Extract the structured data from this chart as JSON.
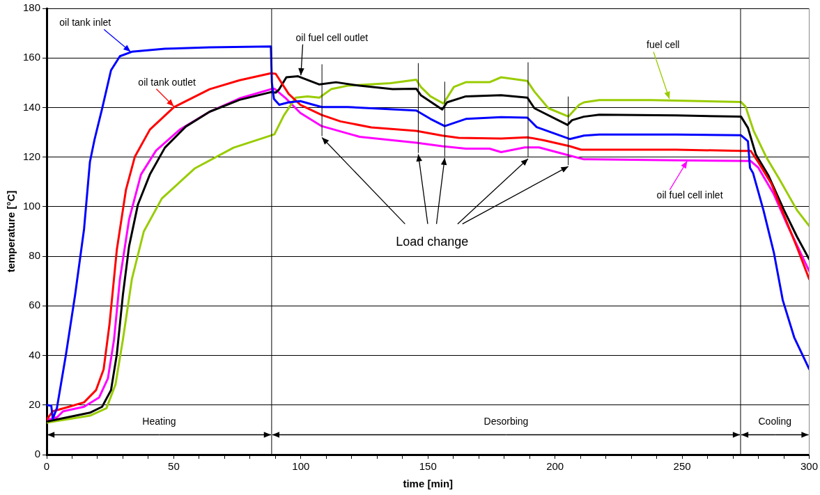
{
  "chart_data": {
    "type": "line",
    "xlabel": "time [min]",
    "ylabel": "temperature [°C]",
    "xlim": [
      0,
      300
    ],
    "ylim": [
      0,
      180
    ],
    "xticks": [
      0,
      {
        "value": 10,
        "label": null
      },
      {
        "value": 20,
        "label": null
      },
      {
        "value": 30,
        "label": null
      },
      {
        "value": 40,
        "label": null
      },
      50,
      {
        "value": 60,
        "label": null
      },
      {
        "value": 70,
        "label": null
      },
      {
        "value": 80,
        "label": null
      },
      {
        "value": 90,
        "label": null
      },
      100,
      {
        "value": 110,
        "label": null
      },
      {
        "value": 120,
        "label": null
      },
      {
        "value": 130,
        "label": null
      },
      {
        "value": 140,
        "label": null
      },
      150,
      {
        "value": 160,
        "label": null
      },
      {
        "value": 170,
        "label": null
      },
      {
        "value": 180,
        "label": null
      },
      {
        "value": 190,
        "label": null
      },
      200,
      {
        "value": 210,
        "label": null
      },
      {
        "value": 220,
        "label": null
      },
      {
        "value": 230,
        "label": null
      },
      {
        "value": 240,
        "label": null
      },
      250,
      {
        "value": 260,
        "label": null
      },
      {
        "value": 270,
        "label": null
      },
      {
        "value": 280,
        "label": null
      },
      {
        "value": 290,
        "label": null
      },
      300
    ],
    "yticks": [
      0,
      20,
      40,
      60,
      80,
      100,
      120,
      140,
      160,
      180
    ],
    "grid": "y",
    "legend": false,
    "series": [
      {
        "name": "oil tank inlet",
        "color": "#0000ff",
        "x": [
          0,
          1.8,
          2.4,
          4,
          7.6,
          11.2,
          14.7,
          17,
          18.8,
          21.8,
          25.3,
          28.8,
          33.5,
          46.5,
          64,
          88.2,
          88.6,
          89.4,
          91.5,
          95.2,
          99.8,
          108.2,
          118.4,
          145.4,
          151,
          156.6,
          164.9,
          178.8,
          189.1,
          192.8,
          205.8,
          211.4,
          217.4,
          247.7,
          273.2,
          275.9,
          276.7,
          277.9,
          282,
          286.1,
          289.6,
          294.1,
          300
        ],
        "values": [
          20,
          19.7,
          14.5,
          18.7,
          40.5,
          64.6,
          91,
          118,
          127,
          139.5,
          155,
          160.7,
          162.5,
          163.7,
          164.3,
          164.6,
          150,
          143.5,
          141.1,
          142.1,
          142.6,
          140.2,
          140.2,
          138.8,
          135.4,
          132.5,
          135.4,
          136.1,
          135.9,
          132.1,
          127.3,
          128.7,
          129.1,
          129.1,
          128.8,
          126.4,
          115.7,
          113.6,
          98.6,
          81.5,
          62.3,
          47.3,
          34.5
        ]
      },
      {
        "name": "oil tank outlet",
        "color": "#ff0000",
        "x": [
          0,
          2.4,
          8.8,
          14.7,
          19.4,
          22.4,
          24.7,
          27.6,
          31.2,
          34.7,
          40.6,
          50,
          64.1,
          75.9,
          88.2,
          90.1,
          95.2,
          99.8,
          108.2,
          115.6,
          127.7,
          145.4,
          155.6,
          162.1,
          178.8,
          189.1,
          195.6,
          205.8,
          210.3,
          217.4,
          247.7,
          273.2,
          277,
          280,
          285.1,
          290.1,
          295.2,
          300
        ],
        "values": [
          14.1,
          17.5,
          19.3,
          21.1,
          26,
          34.4,
          52.5,
          82.7,
          106.9,
          120.2,
          131.1,
          140.1,
          147.4,
          151,
          153.8,
          153.6,
          145.5,
          141.1,
          137,
          134.4,
          132,
          130.6,
          128.7,
          127.8,
          127.5,
          128,
          126.8,
          124.4,
          123,
          123,
          123,
          122.5,
          122.5,
          117.9,
          109.3,
          96.5,
          83.6,
          70.8
        ]
      },
      {
        "name": "oil fuel cell outlet",
        "color": "#000000",
        "x": [
          0,
          17,
          21.8,
          25.3,
          27.6,
          30,
          32.4,
          35.9,
          40.6,
          46.5,
          54.7,
          64.1,
          75.9,
          88.2,
          90.1,
          91.5,
          94.3,
          98.9,
          107.3,
          113.8,
          123.1,
          136.1,
          145.4,
          147.2,
          155.6,
          157.5,
          164.9,
          178.8,
          189.1,
          191.9,
          204.9,
          206.7,
          211.3,
          217.4,
          247.7,
          273.2,
          275.9,
          279,
          284,
          290.1,
          295.2,
          300
        ],
        "values": [
          13.3,
          16.9,
          19.3,
          26,
          40.5,
          64.6,
          84,
          100.9,
          113,
          123.8,
          132.3,
          138.3,
          143.1,
          146.2,
          146,
          147.4,
          152.2,
          152.6,
          149.3,
          150.2,
          148.8,
          147.4,
          147.6,
          145,
          139.2,
          142.1,
          144.5,
          145,
          144,
          139.7,
          133,
          134.9,
          136.3,
          137.1,
          136.8,
          136.3,
          131.8,
          121.1,
          112.5,
          98.6,
          87.9,
          78.8
        ]
      },
      {
        "name": "fuel cell",
        "color": "#99cc00",
        "x": [
          0,
          17,
          23.5,
          27.1,
          30,
          33.5,
          38.2,
          45.3,
          58.2,
          73.5,
          88.2,
          89.6,
          93.3,
          98,
          102.6,
          107.3,
          111.9,
          118.4,
          135.2,
          145.4,
          147.2,
          151,
          156.1,
          160.2,
          164.9,
          174.2,
          178.8,
          189.1,
          191.9,
          197.4,
          205.3,
          209.5,
          211.4,
          217.4,
          237.7,
          273.2,
          275,
          278.1,
          283.1,
          288.1,
          295.2,
          300
        ],
        "values": [
          12.9,
          15.7,
          18.7,
          28.4,
          46.5,
          70.7,
          90,
          103.3,
          115.4,
          123.8,
          128.7,
          129.2,
          136.8,
          144,
          144.5,
          144,
          147.4,
          148.8,
          149.8,
          151.2,
          148.3,
          144.5,
          141.6,
          148.3,
          150.2,
          150.2,
          152.2,
          150.7,
          146.4,
          139.7,
          136.4,
          141.1,
          142.1,
          143,
          143,
          142.2,
          140.3,
          130.7,
          120,
          111.4,
          98.6,
          92.2
        ]
      },
      {
        "name": "oil fuel cell inlet",
        "color": "#ff00ff",
        "x": [
          0,
          4.1,
          6.5,
          14.7,
          20.6,
          24.1,
          26.5,
          28.8,
          32.4,
          37.1,
          43,
          52.4,
          64.1,
          75.9,
          88.2,
          89.6,
          94.3,
          99.8,
          108.2,
          123.1,
          145.4,
          155.6,
          164.9,
          174.2,
          178.8,
          188.1,
          193.7,
          205.8,
          211.4,
          213.3,
          247.7,
          277,
          280,
          286.1,
          291.1,
          300
        ],
        "values": [
          13.9,
          15.1,
          17.5,
          19.3,
          23,
          30.8,
          46.5,
          70.7,
          94.8,
          113,
          122.6,
          131.1,
          138.3,
          143.7,
          147.4,
          147.6,
          143.5,
          137.8,
          132.5,
          128.2,
          125.8,
          124.4,
          123.4,
          123.4,
          122,
          123.9,
          123.9,
          120.6,
          119.1,
          119.1,
          118.7,
          118.4,
          115.7,
          105,
          93.3,
          74
        ]
      }
    ],
    "ref_lines": [
      {
        "axis": "x",
        "value": 88.5,
        "line_style": "solid"
      },
      {
        "axis": "x",
        "value": 273,
        "line_style": "solid"
      },
      {
        "axis": "x",
        "value": 108.3
      },
      {
        "axis": "x",
        "value": 146.2
      },
      {
        "axis": "x",
        "value": 156.6
      },
      {
        "axis": "x",
        "value": 189.4
      },
      {
        "axis": "x",
        "value": 205.2
      }
    ],
    "annotations": [
      {
        "text": "Load change",
        "x": 156.6,
        "y": 120
      },
      {
        "text": "Heating",
        "x": 88.5,
        "y": 8
      },
      {
        "text": "Desorbing",
        "x": 273,
        "y": 8
      },
      {
        "text": "Cooling",
        "x": 273,
        "y": 8
      }
    ]
  }
}
